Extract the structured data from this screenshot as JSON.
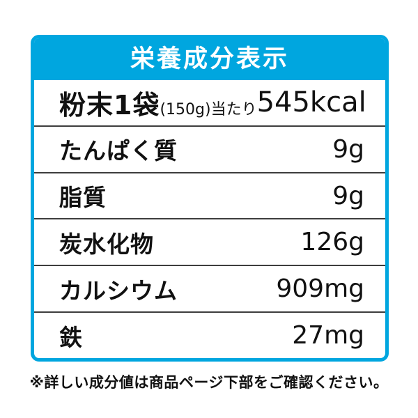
{
  "header": {
    "title": "栄養成分表示"
  },
  "table": {
    "serving_row": {
      "label_big": "粉末1袋",
      "label_small": "(150g)当たり",
      "value": "545kcal"
    },
    "rows": [
      {
        "label": "たんぱく質",
        "value": "9g"
      },
      {
        "label": "脂質",
        "value": "9g"
      },
      {
        "label": "炭水化物",
        "value": "126g"
      },
      {
        "label": "カルシウム",
        "value": "909mg"
      },
      {
        "label": "鉄",
        "value": "27mg"
      }
    ]
  },
  "footer": {
    "note": "※詳しい成分値は商品ページ下部をご確認ください。"
  },
  "colors": {
    "accent": "#00a6df",
    "text": "#111111",
    "divider": "#3d3d3d",
    "background": "#ffffff"
  }
}
